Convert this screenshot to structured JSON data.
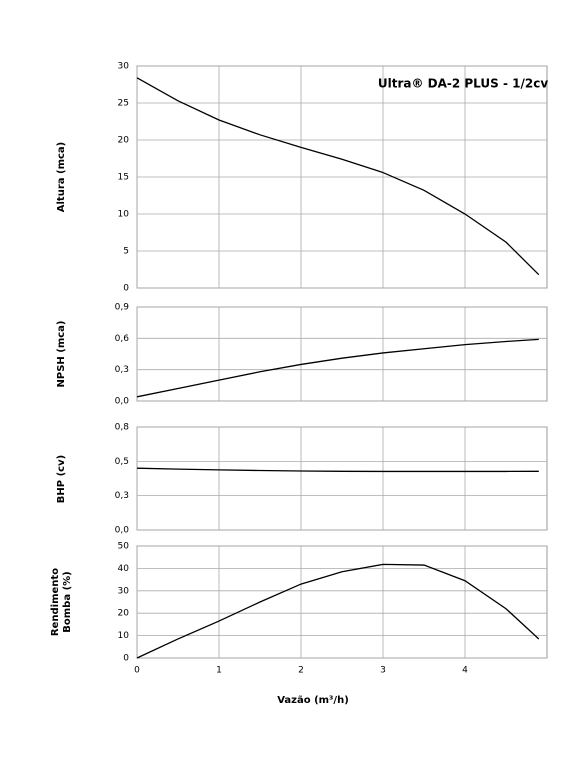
{
  "chart_data": [
    {
      "type": "line",
      "annotation": "Ultra® DA-2 PLUS - 1/2cv",
      "ylabel": "Altura (mca)",
      "x": [
        0,
        0.5,
        1,
        1.5,
        2,
        2.5,
        3,
        3.5,
        4,
        4.5,
        4.9
      ],
      "values": [
        28.4,
        25.3,
        22.7,
        20.7,
        19.0,
        17.4,
        15.6,
        13.2,
        10.0,
        6.2,
        1.8
      ],
      "color": "#000000",
      "xlim": [
        0,
        5
      ],
      "xticks": [
        0,
        1,
        2,
        3,
        4
      ],
      "ylim": [
        0,
        30
      ],
      "yticks": [
        0,
        5,
        10,
        15,
        20,
        25,
        30
      ],
      "grid": true
    },
    {
      "type": "line",
      "ylabel": "NPSH (mca)",
      "x": [
        0,
        0.5,
        1,
        1.5,
        2,
        2.5,
        3,
        3.5,
        4,
        4.5,
        4.9
      ],
      "values": [
        0.04,
        0.12,
        0.2,
        0.28,
        0.35,
        0.41,
        0.46,
        0.5,
        0.54,
        0.57,
        0.59
      ],
      "color": "#000000",
      "xlim": [
        0,
        5
      ],
      "xticks": [
        0,
        1,
        2,
        3,
        4
      ],
      "ylim": [
        0,
        0.9
      ],
      "yticks": [
        {
          "value": 0,
          "label": "0,0"
        },
        {
          "value": 0.3,
          "label": "0,3"
        },
        {
          "value": 0.6,
          "label": "0,6"
        },
        {
          "value": 0.9,
          "label": "0,9"
        }
      ],
      "grid": true
    },
    {
      "type": "line",
      "ylabel": "BHP (cv)",
      "x": [
        0,
        0.5,
        1,
        1.5,
        2,
        2.5,
        3,
        3.5,
        4,
        4.5,
        4.9
      ],
      "values": [
        0.48,
        0.473,
        0.467,
        0.462,
        0.458,
        0.456,
        0.455,
        0.455,
        0.455,
        0.455,
        0.456
      ],
      "color": "#000000",
      "xlim": [
        0,
        5
      ],
      "xticks": [
        0,
        1,
        2,
        3,
        4
      ],
      "ylim": [
        0,
        0.8
      ],
      "yticks": [
        {
          "value": 0,
          "label": "0,0"
        },
        {
          "value": 0.2667,
          "label": "0,3"
        },
        {
          "value": 0.5333,
          "label": "0,5"
        },
        {
          "value": 0.8,
          "label": "0,8"
        }
      ],
      "grid": true
    },
    {
      "type": "line",
      "ylabel": "Rendimento Bomba (%)",
      "xlabel": "Vazão (m³/h)",
      "x": [
        0,
        0.5,
        1,
        1.5,
        2,
        2.5,
        3,
        3.5,
        4,
        4.5,
        4.9
      ],
      "values": [
        0,
        8.5,
        16.5,
        25,
        33,
        38.5,
        41.8,
        41.5,
        34.5,
        22,
        8.5
      ],
      "color": "#000000",
      "xlim": [
        0,
        5
      ],
      "xticks": [
        0,
        1,
        2,
        3,
        4
      ],
      "ylim": [
        0,
        50
      ],
      "yticks": [
        0,
        10,
        20,
        30,
        40,
        50
      ],
      "grid": true
    }
  ]
}
